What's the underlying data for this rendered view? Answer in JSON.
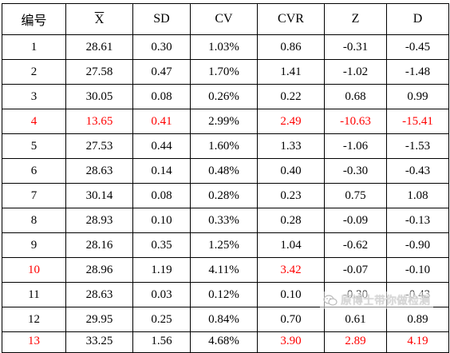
{
  "table": {
    "headers": [
      "编号",
      "X",
      "SD",
      "CV",
      "CVR",
      "Z",
      "D"
    ],
    "rows": [
      {
        "cells": [
          "1",
          "28.61",
          "0.30",
          "1.03%",
          "0.86",
          "-0.31",
          "-0.45"
        ],
        "red": []
      },
      {
        "cells": [
          "2",
          "27.58",
          "0.47",
          "1.70%",
          "1.41",
          "-1.02",
          "-1.48"
        ],
        "red": []
      },
      {
        "cells": [
          "3",
          "30.05",
          "0.08",
          "0.26%",
          "0.22",
          "0.68",
          "0.99"
        ],
        "red": []
      },
      {
        "cells": [
          "4",
          "13.65",
          "0.41",
          "2.99%",
          "2.49",
          "-10.63",
          "-15.41"
        ],
        "red": [
          0,
          1,
          2,
          4,
          5,
          6
        ]
      },
      {
        "cells": [
          "5",
          "27.53",
          "0.44",
          "1.60%",
          "1.33",
          "-1.06",
          "-1.53"
        ],
        "red": []
      },
      {
        "cells": [
          "6",
          "28.63",
          "0.14",
          "0.48%",
          "0.40",
          "-0.30",
          "-0.43"
        ],
        "red": []
      },
      {
        "cells": [
          "7",
          "30.14",
          "0.08",
          "0.28%",
          "0.23",
          "0.75",
          "1.08"
        ],
        "red": []
      },
      {
        "cells": [
          "8",
          "28.93",
          "0.10",
          "0.33%",
          "0.28",
          "-0.09",
          "-0.13"
        ],
        "red": []
      },
      {
        "cells": [
          "9",
          "28.16",
          "0.35",
          "1.25%",
          "1.04",
          "-0.62",
          "-0.90"
        ],
        "red": []
      },
      {
        "cells": [
          "10",
          "28.96",
          "1.19",
          "4.11%",
          "3.42",
          "-0.07",
          "-0.10"
        ],
        "red": [
          0,
          4
        ]
      },
      {
        "cells": [
          "11",
          "28.63",
          "0.03",
          "0.12%",
          "0.10",
          "-0.30",
          "-0.43"
        ],
        "red": []
      },
      {
        "cells": [
          "12",
          "29.95",
          "0.25",
          "0.84%",
          "0.70",
          "0.61",
          "0.89"
        ],
        "red": []
      },
      {
        "cells": [
          "13",
          "33.25",
          "1.56",
          "4.68%",
          "3.90",
          "2.89",
          "4.19"
        ],
        "red": [
          0,
          4,
          5,
          6
        ]
      }
    ]
  },
  "colors": {
    "text": "#000000",
    "highlight": "#ff0000",
    "border": "#000000"
  },
  "watermark": {
    "icon": "wechat-icon",
    "text": "原博士带你做检测"
  }
}
